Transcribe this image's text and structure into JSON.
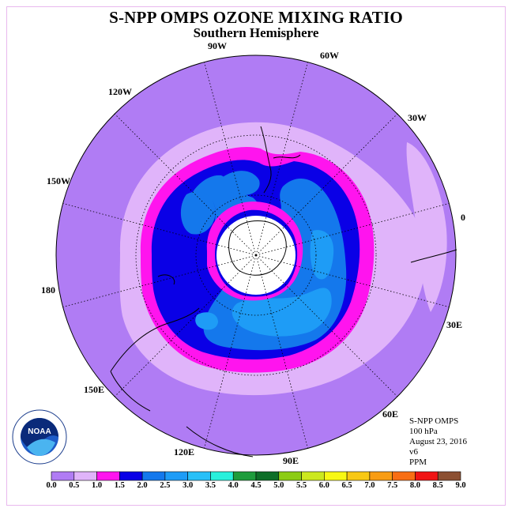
{
  "title": "S-NPP OMPS OZONE MIXING RATIO",
  "subtitle": "Southern Hemisphere",
  "longitude_labels": [
    "90W",
    "60W",
    "30W",
    "0",
    "30E",
    "60E",
    "90E",
    "120E",
    "150E",
    "180",
    "150W",
    "120W"
  ],
  "info": {
    "instrument": "S-NPP OMPS",
    "level": "100 hPa",
    "date": "August 23, 2016",
    "version": "v6",
    "units": "PPM"
  },
  "logo": {
    "text": "NOAA",
    "ring_text": "NATIONAL OCEANIC AND ATMOSPHERIC ADMINISTRATION · U.S. DEPARTMENT OF COMMERCE"
  },
  "colorbar": {
    "labels": [
      "0.0",
      "0.5",
      "1.0",
      "1.5",
      "2.0",
      "2.5",
      "3.0",
      "3.5",
      "4.0",
      "4.5",
      "5.0",
      "5.5",
      "6.0",
      "6.5",
      "7.0",
      "7.5",
      "8.0",
      "8.5",
      "9.0"
    ],
    "colors": [
      "#b07cf4",
      "#e0b4fa",
      "#ff14ee",
      "#0a00e6",
      "#1478ec",
      "#1e9cf6",
      "#28c0f8",
      "#28f0dc",
      "#1e9c3c",
      "#0e6e28",
      "#8ccc14",
      "#cce81e",
      "#f8f814",
      "#f8c814",
      "#f89c14",
      "#f86e14",
      "#f01414",
      "#8c5032"
    ]
  }
}
